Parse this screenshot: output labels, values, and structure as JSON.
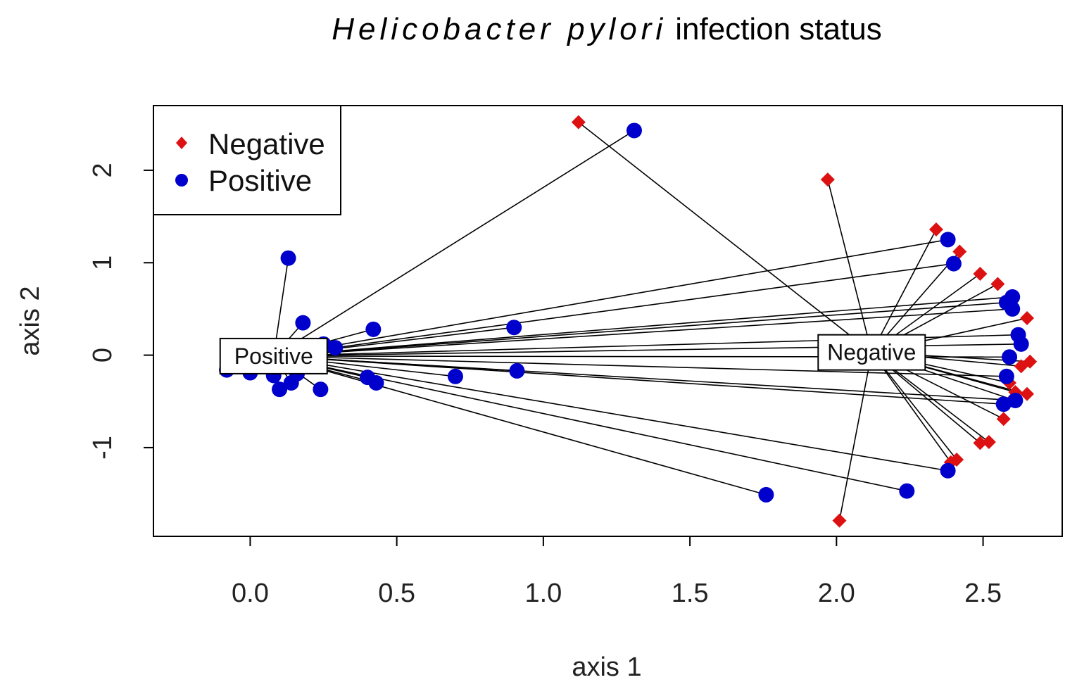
{
  "chart_data": {
    "type": "scatter",
    "title_italic": "Helicobacter pylori",
    "title_rest": "infection status",
    "xlabel": "axis 1",
    "ylabel": "axis 2",
    "xlim": [
      -0.33,
      2.77
    ],
    "ylim": [
      -1.96,
      2.7
    ],
    "x_ticks": [
      0.0,
      0.5,
      1.0,
      1.5,
      2.0,
      2.5
    ],
    "x_tick_labels": [
      "0.0",
      "0.5",
      "1.0",
      "1.5",
      "2.0",
      "2.5"
    ],
    "y_ticks": [
      -1,
      0,
      1,
      2
    ],
    "y_tick_labels": [
      "-1",
      "0",
      "1",
      "2"
    ],
    "legend": {
      "position": "top-left",
      "entries": [
        {
          "label": "Negative",
          "color": "#dd1111",
          "shape": "diamond"
        },
        {
          "label": "Positive",
          "color": "#0000cc",
          "shape": "circle"
        }
      ]
    },
    "centroids": [
      {
        "label": "Positive",
        "x": 0.08,
        "y": -0.01
      },
      {
        "label": "Negative",
        "x": 2.12,
        "y": 0.03
      }
    ],
    "series": [
      {
        "name": "Negative",
        "color": "#dd1111",
        "shape": "diamond",
        "centroid": "Negative",
        "points": [
          [
            1.12,
            2.52
          ],
          [
            1.97,
            1.9
          ],
          [
            2.34,
            1.36
          ],
          [
            2.42,
            1.12
          ],
          [
            2.49,
            0.88
          ],
          [
            2.55,
            0.77
          ],
          [
            2.65,
            0.4
          ],
          [
            2.66,
            -0.07
          ],
          [
            2.63,
            -0.12
          ],
          [
            2.59,
            -0.3
          ],
          [
            2.61,
            -0.4
          ],
          [
            2.65,
            -0.42
          ],
          [
            2.6,
            -0.48
          ],
          [
            2.57,
            -0.69
          ],
          [
            2.49,
            -0.95
          ],
          [
            2.52,
            -0.94
          ],
          [
            2.41,
            -1.13
          ],
          [
            2.39,
            -1.16
          ],
          [
            2.01,
            -1.79
          ]
        ]
      },
      {
        "name": "Positive",
        "color": "#0000cc",
        "shape": "circle",
        "centroid": "Positive",
        "points": [
          [
            1.31,
            2.43
          ],
          [
            0.13,
            1.05
          ],
          [
            0.18,
            0.35
          ],
          [
            0.42,
            0.28
          ],
          [
            0.9,
            0.3
          ],
          [
            0.25,
            0.12
          ],
          [
            0.29,
            0.08
          ],
          [
            0.11,
            0.05
          ],
          [
            0.05,
            -0.08
          ],
          [
            -0.08,
            -0.16
          ],
          [
            0.0,
            -0.19
          ],
          [
            0.08,
            -0.22
          ],
          [
            0.16,
            -0.2
          ],
          [
            0.14,
            -0.3
          ],
          [
            0.1,
            -0.37
          ],
          [
            0.24,
            -0.37
          ],
          [
            0.4,
            -0.24
          ],
          [
            0.43,
            -0.3
          ],
          [
            0.7,
            -0.23
          ],
          [
            0.91,
            -0.17
          ],
          [
            1.76,
            -1.51
          ],
          [
            2.24,
            -1.47
          ],
          [
            2.38,
            1.25
          ],
          [
            2.4,
            0.99
          ],
          [
            2.38,
            -1.25
          ],
          [
            2.6,
            0.63
          ],
          [
            2.58,
            0.57
          ],
          [
            2.6,
            0.5
          ],
          [
            2.62,
            0.22
          ],
          [
            2.63,
            0.12
          ],
          [
            2.59,
            -0.02
          ],
          [
            2.58,
            -0.23
          ],
          [
            2.57,
            -0.53
          ],
          [
            2.61,
            -0.49
          ]
        ]
      }
    ]
  }
}
